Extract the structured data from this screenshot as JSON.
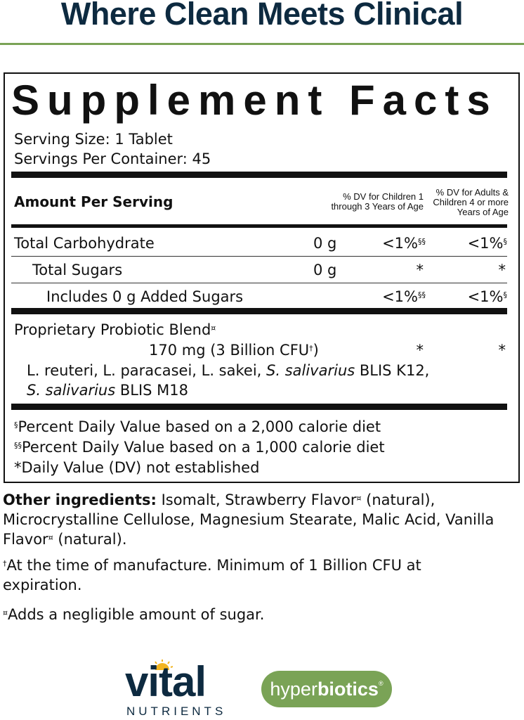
{
  "headline": "Where Clean Meets Clinical",
  "colors": {
    "navy": "#0d2a40",
    "green": "#7aa356",
    "sun": "#f2b522"
  },
  "facts": {
    "title": "Supplement Facts",
    "serving_size": "Serving Size: 1 Tablet",
    "servings_per_container": "Servings Per Container: 45",
    "amount_per_serving": "Amount Per Serving",
    "col_children_l1": "% DV for Children 1",
    "col_children_l2": "through 3 Years of Age",
    "col_adults_l1": "% DV for Adults &",
    "col_adults_l2": "Children 4 or more",
    "col_adults_l3": "Years of Age",
    "rows": [
      {
        "name": "Total Carbohydrate",
        "amount": "0 g",
        "dv_children": "<1%",
        "dv_children_sup": "§§",
        "dv_adults": "<1%",
        "dv_adults_sup": "§"
      },
      {
        "name": "Total Sugars",
        "amount": "0 g",
        "dv_children": "*",
        "dv_adults": "*"
      },
      {
        "name": "Includes 0 g Added Sugars",
        "amount": "",
        "dv_children": "<1%",
        "dv_children_sup": "§§",
        "dv_adults": "<1%",
        "dv_adults_sup": "§"
      }
    ],
    "blend": {
      "name": "Proprietary Probiotic Blend",
      "name_sup": "¤",
      "amount": "170 mg (3 Billion CFU",
      "amount_sup": "†",
      "amount_close": ")",
      "dv_children": "*",
      "dv_adults": "*",
      "line1_plain": "L. reuteri, L. paracasei, L. sakei, ",
      "line1_italic": "S. salivarius",
      "line1_end": " BLIS K12,",
      "line2_italic": "S. salivarius",
      "line2_end": " BLIS M18"
    },
    "footnotes": [
      {
        "mark": "§",
        "text": "Percent Daily Value based on a 2,000 calorie diet"
      },
      {
        "mark": "§§",
        "text": "Percent Daily Value based on a 1,000 calorie diet"
      },
      {
        "mark": "",
        "text": "*Daily Value (DV) not established"
      }
    ]
  },
  "other": {
    "label": "Other ingredients:",
    "p1": " Isomalt, Strawberry Flavor",
    "p2": " (natural), Microcrystalline Cellulose, Magnesium Stearate, Malic Acid, Vanilla Flavor",
    "p3": " (natural).",
    "mark": "¤"
  },
  "dagger_note": {
    "mark": "†",
    "text": "At the time of manufacture. Minimum of 1 Billion CFU at expiration."
  },
  "sugar_note": {
    "mark": "¤",
    "text": "Adds a negligible amount of sugar."
  },
  "logos": {
    "vital": "vital",
    "vital_sub": "NUTRIENTS",
    "hyper_a": "hyper",
    "hyper_b": "biotics",
    "hyper_reg": "®"
  }
}
